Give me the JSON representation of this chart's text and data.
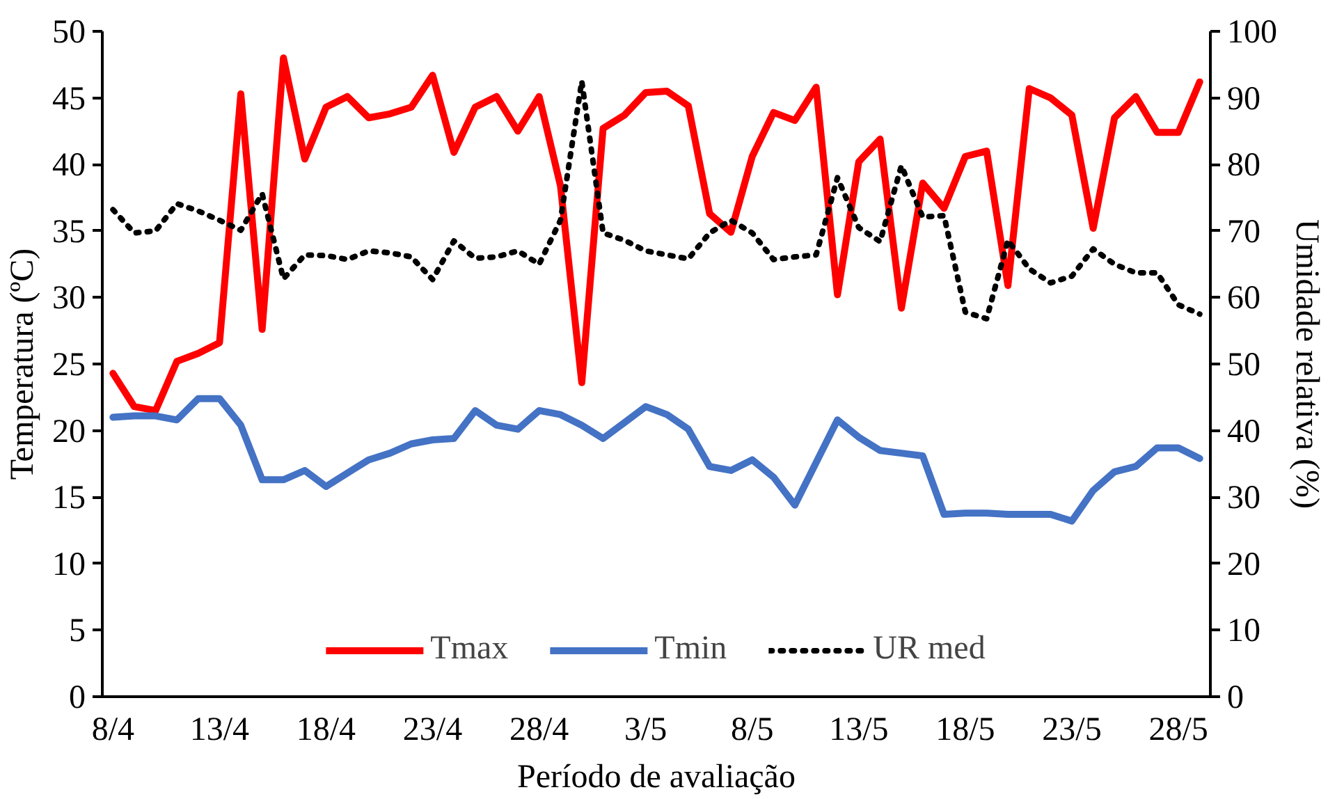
{
  "chart_data": {
    "type": "line",
    "xlabel": "Período de avaliação",
    "ylabel": "Temperatura (ºC)",
    "y2label": "Umidade relativa (%)",
    "categories": [
      "8/4",
      null,
      null,
      null,
      null,
      "13/4",
      null,
      null,
      null,
      null,
      "18/4",
      null,
      null,
      null,
      null,
      "23/4",
      null,
      null,
      null,
      null,
      "28/4",
      null,
      null,
      null,
      null,
      "3/5",
      null,
      null,
      null,
      null,
      "8/5",
      null,
      null,
      null,
      null,
      "13/5",
      null,
      null,
      null,
      null,
      "18/5",
      null,
      null,
      null,
      null,
      "23/5",
      null,
      null,
      null,
      null,
      "28/5",
      null
    ],
    "series": [
      {
        "name": "Tmax",
        "color": "#ff0000",
        "line_style": "solid",
        "values": [
          24.3,
          21.8,
          21.5,
          25.2,
          25.8,
          26.6,
          45.3,
          27.6,
          48.0,
          40.4,
          44.3,
          45.1,
          43.5,
          43.8,
          44.3,
          46.7,
          40.9,
          44.3,
          45.1,
          42.5,
          45.1,
          38.4,
          23.6,
          42.7,
          43.7,
          45.4,
          45.5,
          44.4,
          36.3,
          34.9,
          40.6,
          43.9,
          43.3,
          45.8,
          30.2,
          40.2,
          41.9,
          29.2,
          38.6,
          36.7,
          40.6,
          41.0,
          30.9,
          45.7,
          45.0,
          43.7,
          35.2,
          43.5,
          45.1,
          42.4,
          42.4,
          46.2
        ]
      },
      {
        "name": "Tmin",
        "color": "#4472c4",
        "line_style": "solid",
        "values": [
          21.0,
          21.1,
          21.1,
          20.8,
          22.4,
          22.4,
          20.4,
          16.3,
          16.3,
          17.0,
          15.8,
          16.8,
          17.8,
          18.3,
          19.0,
          19.3,
          19.4,
          21.5,
          20.4,
          20.1,
          21.5,
          21.2,
          20.4,
          19.4,
          20.6,
          21.8,
          21.2,
          20.1,
          17.3,
          17.0,
          17.8,
          16.5,
          14.4,
          17.6,
          20.8,
          19.5,
          18.5,
          18.3,
          18.1,
          13.7,
          13.8,
          13.8,
          13.7,
          13.7,
          13.7,
          13.2,
          15.5,
          16.9,
          17.3,
          18.7,
          18.7,
          17.9
        ]
      },
      {
        "name": "UR med",
        "color": "#000000",
        "line_style": "dotted",
        "axis": "y2",
        "values": [
          73.2,
          69.7,
          70.0,
          74.1,
          73.0,
          71.6,
          70.1,
          75.6,
          62.8,
          66.4,
          66.3,
          65.7,
          67.0,
          66.7,
          66.1,
          62.7,
          68.5,
          65.9,
          66.1,
          67.0,
          65.0,
          71.6,
          92.5,
          69.7,
          68.6,
          67.0,
          66.4,
          65.8,
          69.7,
          71.6,
          69.7,
          65.7,
          66.1,
          66.4,
          78.0,
          70.5,
          68.4,
          79.8,
          72.1,
          72.3,
          57.8,
          56.8,
          68.6,
          64.3,
          62.2,
          63.2,
          67.3,
          65.0,
          63.7,
          63.7,
          58.9,
          57.5
        ]
      }
    ],
    "ylim": [
      0,
      50
    ],
    "yticks": [
      0,
      5,
      10,
      15,
      20,
      25,
      30,
      35,
      40,
      45,
      50
    ],
    "y2lim": [
      0,
      100
    ],
    "y2ticks": [
      0,
      10,
      20,
      30,
      40,
      50,
      60,
      70,
      80,
      90,
      100
    ],
    "grid": false,
    "legend": "bottom",
    "marker": "none"
  }
}
